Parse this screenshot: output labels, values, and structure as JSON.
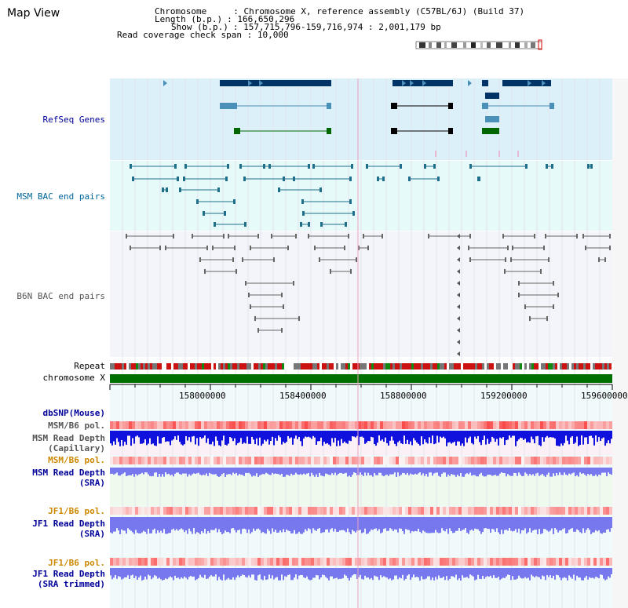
{
  "header": {
    "title": "Map View",
    "info": [
      {
        "key": "Chromosome",
        "value": "Chromosome X, reference assembly (C57BL/6J) (Build 37)"
      },
      {
        "key": "Length (b.p.)",
        "value": "166,650,296"
      },
      {
        "key": "Show (b.p.)",
        "value": "157,715,796-159,716,974 : 2,001,179 bp"
      },
      {
        "key": "Read coverage check span",
        "value": "10,000"
      }
    ]
  },
  "tracks": {
    "refseq": "RefSeq Genes",
    "msm_bac": "MSM BAC end pairs",
    "b6n_bac": "B6N BAC end pairs",
    "repeat": "Repeat",
    "chromosome": "chromosome X",
    "dbsnp": "dbSNP(Mouse)",
    "msm_b6_pol_1": "MSM/B6 pol.",
    "msm_depth_cap_1": "MSM Read Depth",
    "msm_depth_cap_2": "(Capillary)",
    "msm_b6_pol_2": "MSM/B6 pol.",
    "msm_depth_sra_1": "MSM Read Depth",
    "msm_depth_sra_2": "(SRA)",
    "jf1_b6_pol_1": "JF1/B6 pol.",
    "jf1_depth_sra_1": "JF1 Read Depth",
    "jf1_depth_sra_2": "(SRA)",
    "jf1_b6_pol_2": "JF1/B6 pol.",
    "jf1_depth_trim_1": "JF1 Read Depth",
    "jf1_depth_trim_2": "(SRA trimmed)"
  },
  "axis": {
    "ticks": [
      "158000000",
      "158400000",
      "158800000",
      "159200000",
      "159600000"
    ]
  },
  "colors": {
    "refseq_bg": "#dcf0fa",
    "refseq_gene": "#003366",
    "refseq_mid": "#4a90b8",
    "refseq_green": "#006600",
    "msm_bg": "#e6fafa",
    "msm_feature": "#1f6f8b",
    "b6n_bg": "#f4f4fb",
    "b6n_feature": "#666666",
    "chromosome": "#007000",
    "depth_cap": "#1111dd",
    "depth_sra": "#7777ee",
    "pol_red": "#f03030",
    "label_blue": "#000099",
    "label_teal": "#006699",
    "label_orange": "#cc8800",
    "label_grey": "#555555"
  }
}
